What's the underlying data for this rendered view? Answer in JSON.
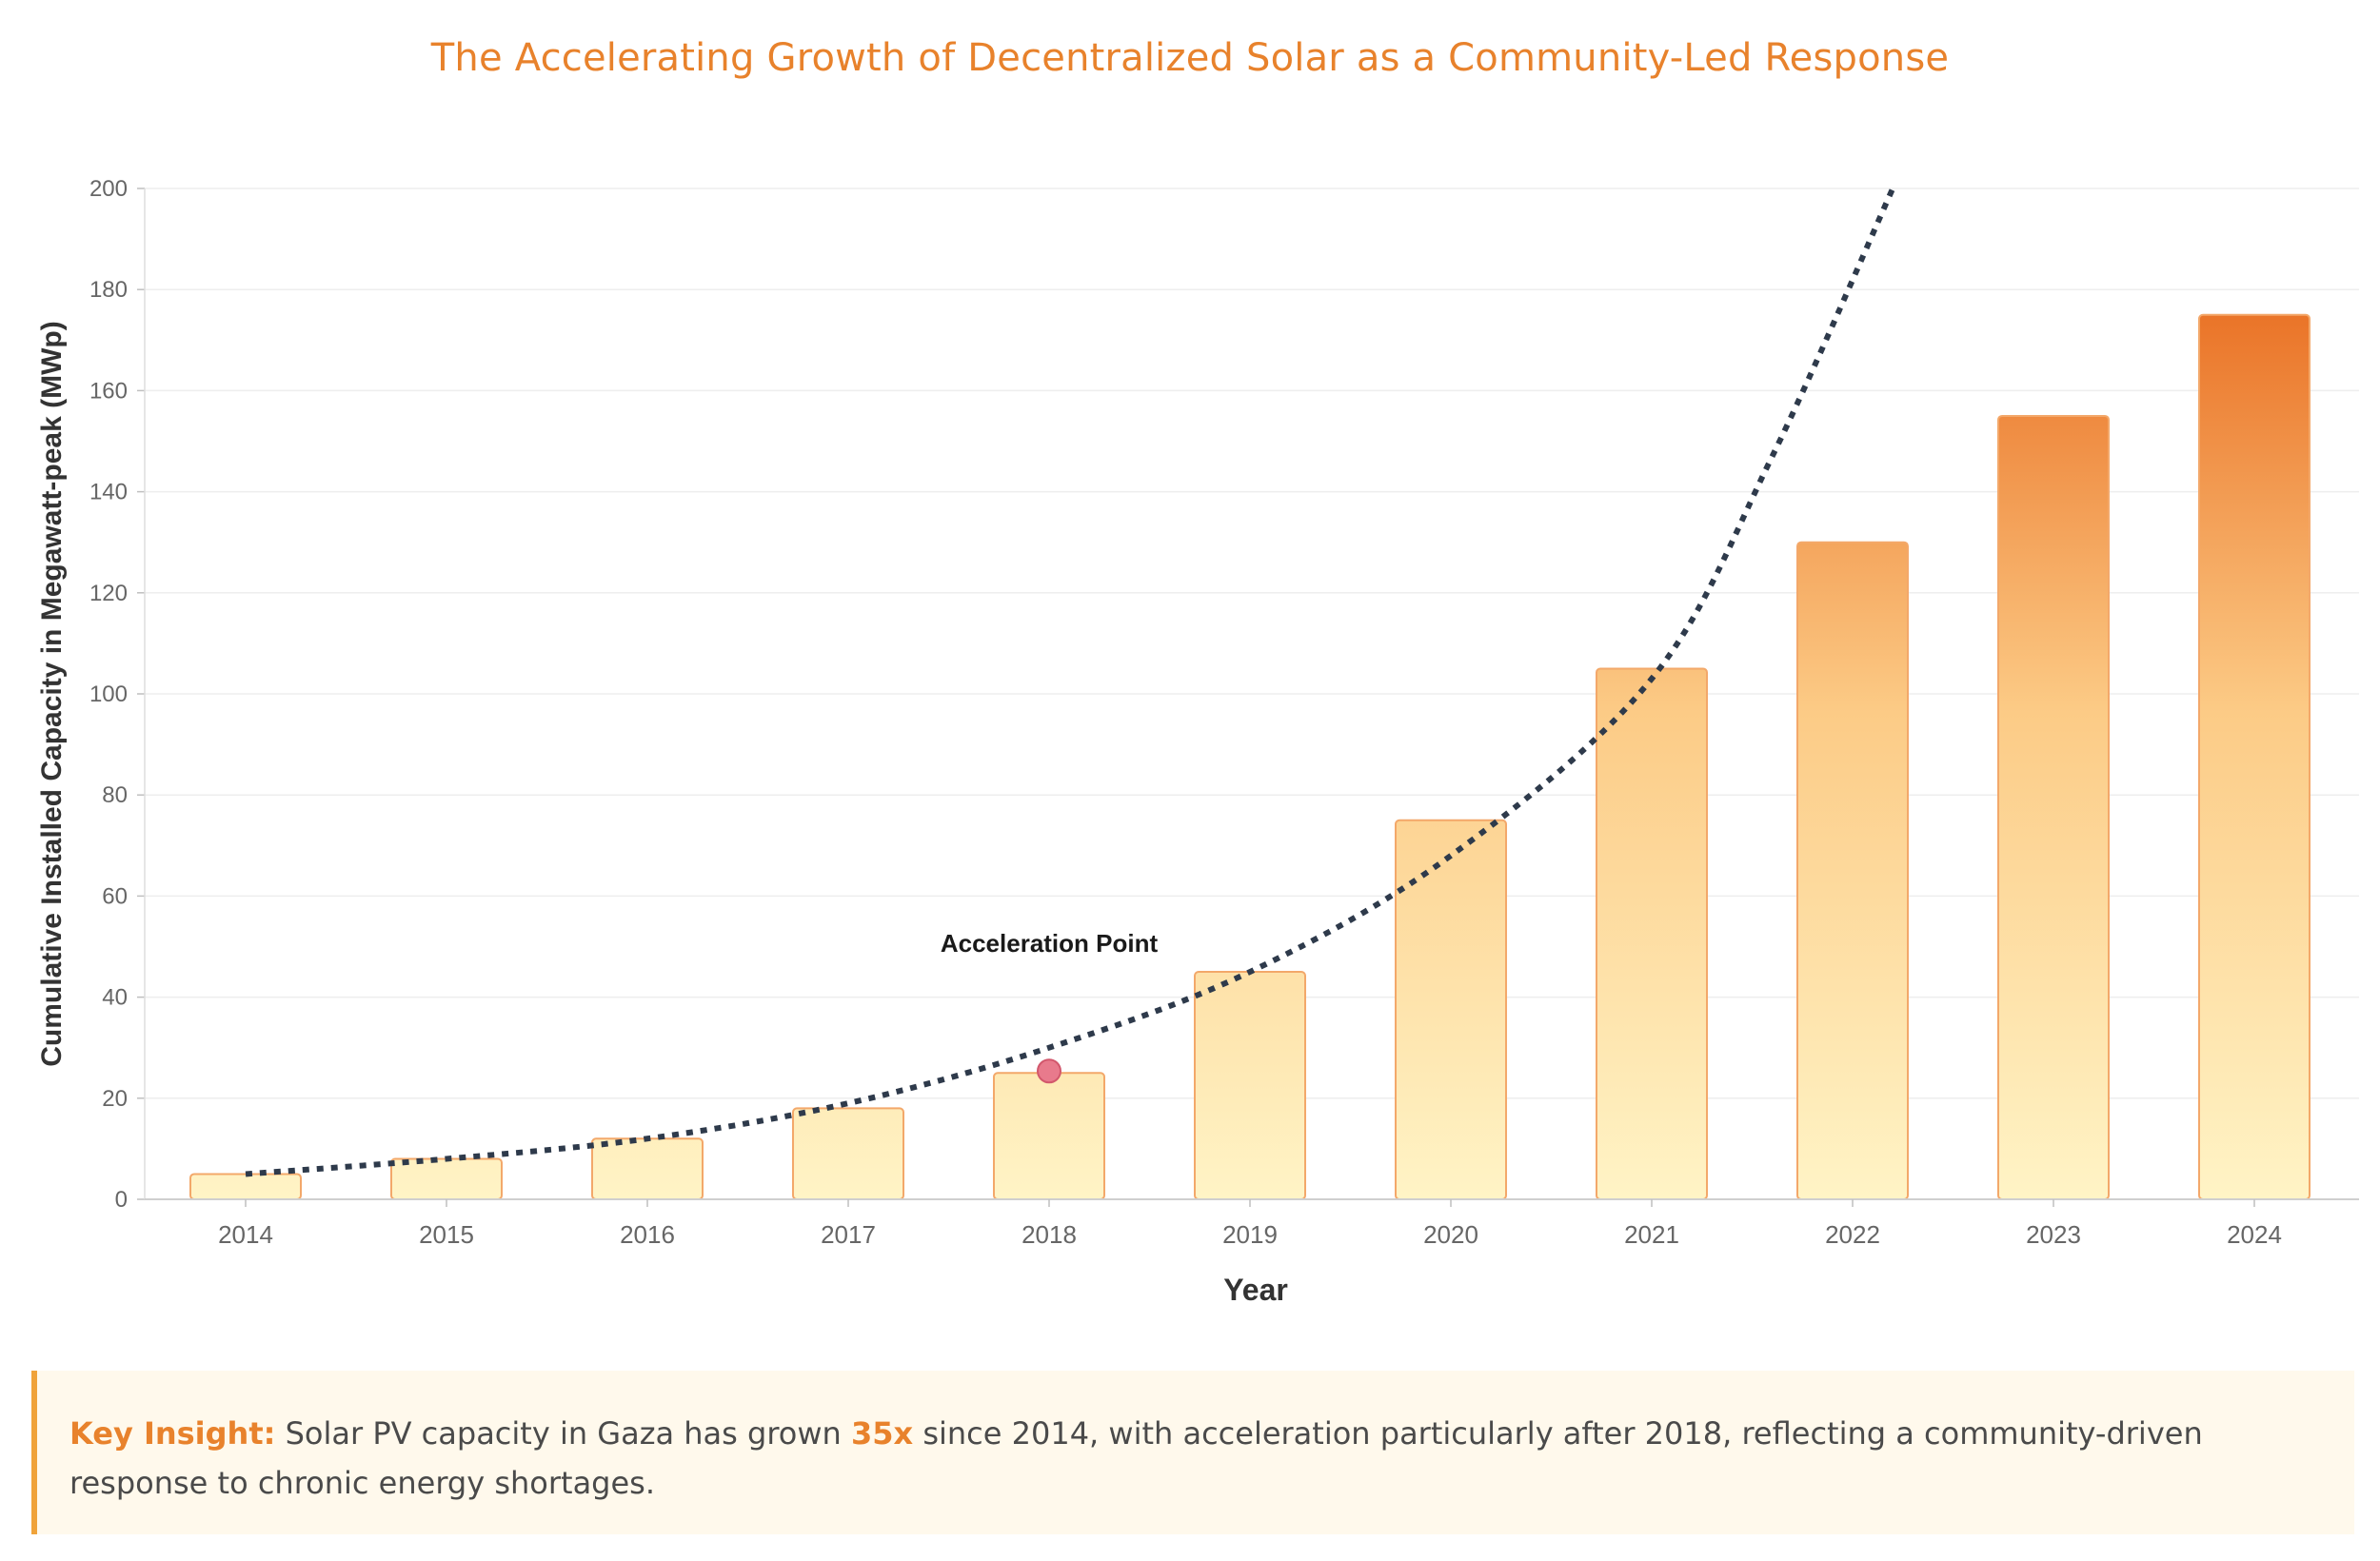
{
  "chart_data": {
    "type": "bar",
    "title": "The Accelerating Growth of Decentralized Solar as a Community-Led Response",
    "xlabel": "Year",
    "ylabel": "Cumulative Installed Capacity in Megawatt-peak (MWp)",
    "categories": [
      "2014",
      "2015",
      "2016",
      "2017",
      "2018",
      "2019",
      "2020",
      "2021",
      "2022",
      "2023",
      "2024"
    ],
    "values": [
      5,
      8,
      12,
      18,
      25,
      45,
      75,
      105,
      130,
      155,
      175
    ],
    "ylim": [
      0,
      200
    ],
    "yticks": [
      0,
      20,
      40,
      60,
      80,
      100,
      120,
      140,
      160,
      180,
      200
    ],
    "grid": true,
    "trendline": {
      "style": "dotted",
      "points": [
        {
          "x": "2014",
          "y": 5
        },
        {
          "x": "2015",
          "y": 8
        },
        {
          "x": "2016",
          "y": 12
        },
        {
          "x": "2017",
          "y": 19
        },
        {
          "x": "2018",
          "y": 30
        },
        {
          "x": "2019",
          "y": 45
        },
        {
          "x": "2020",
          "y": 68
        },
        {
          "x": "2021",
          "y": 103
        },
        {
          "x": "2021.6",
          "y": 147
        },
        {
          "x": "2022.2",
          "y": 200
        }
      ]
    },
    "annotation": {
      "text": "Acceleration Point",
      "x": "2018",
      "y": 25,
      "marker_color": "#E87A8C"
    }
  },
  "colors": {
    "title": "#E8822C",
    "bar_low": "#FFF4C6",
    "bar_mid": "#FCCB86",
    "bar_high": "#EA7428",
    "bar_stroke": "#F3A86A",
    "trend": "#2E3A4B",
    "accent": "#E8822C"
  },
  "insight": {
    "label": "Key Insight:",
    "text_before": " Solar PV capacity in Gaza has grown ",
    "multiplier": "35x",
    "text_after": " since 2014, with acceleration particularly after 2018, reflecting a community-driven response to chronic energy shortages."
  }
}
